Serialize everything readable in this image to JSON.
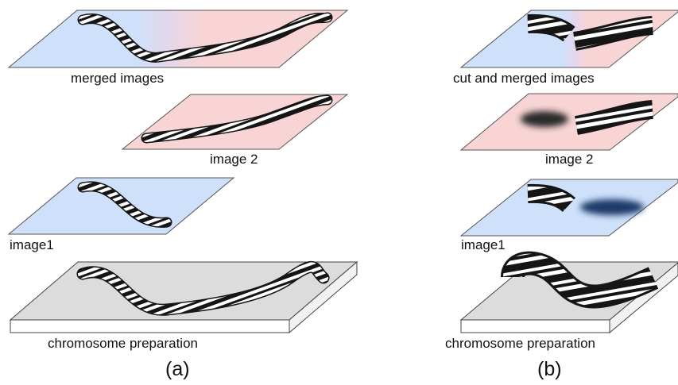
{
  "panels": [
    {
      "caption": "(a)",
      "layers": {
        "merged": "merged images",
        "image2": "image 2",
        "image1": "image1",
        "preparation": "chromosome preparation"
      }
    },
    {
      "caption": "(b)",
      "layers": {
        "merged": "cut and merged images",
        "image2": "image 2",
        "image1": "image1",
        "preparation": "chromosome preparation"
      }
    }
  ],
  "colors": {
    "image1_fill": "#cfe0fa",
    "image2_fill": "#f9d4d4",
    "preparation_fill": "#dcdcdc",
    "chromosome_band": "#151515",
    "chromosome_light": "#ffffff"
  }
}
